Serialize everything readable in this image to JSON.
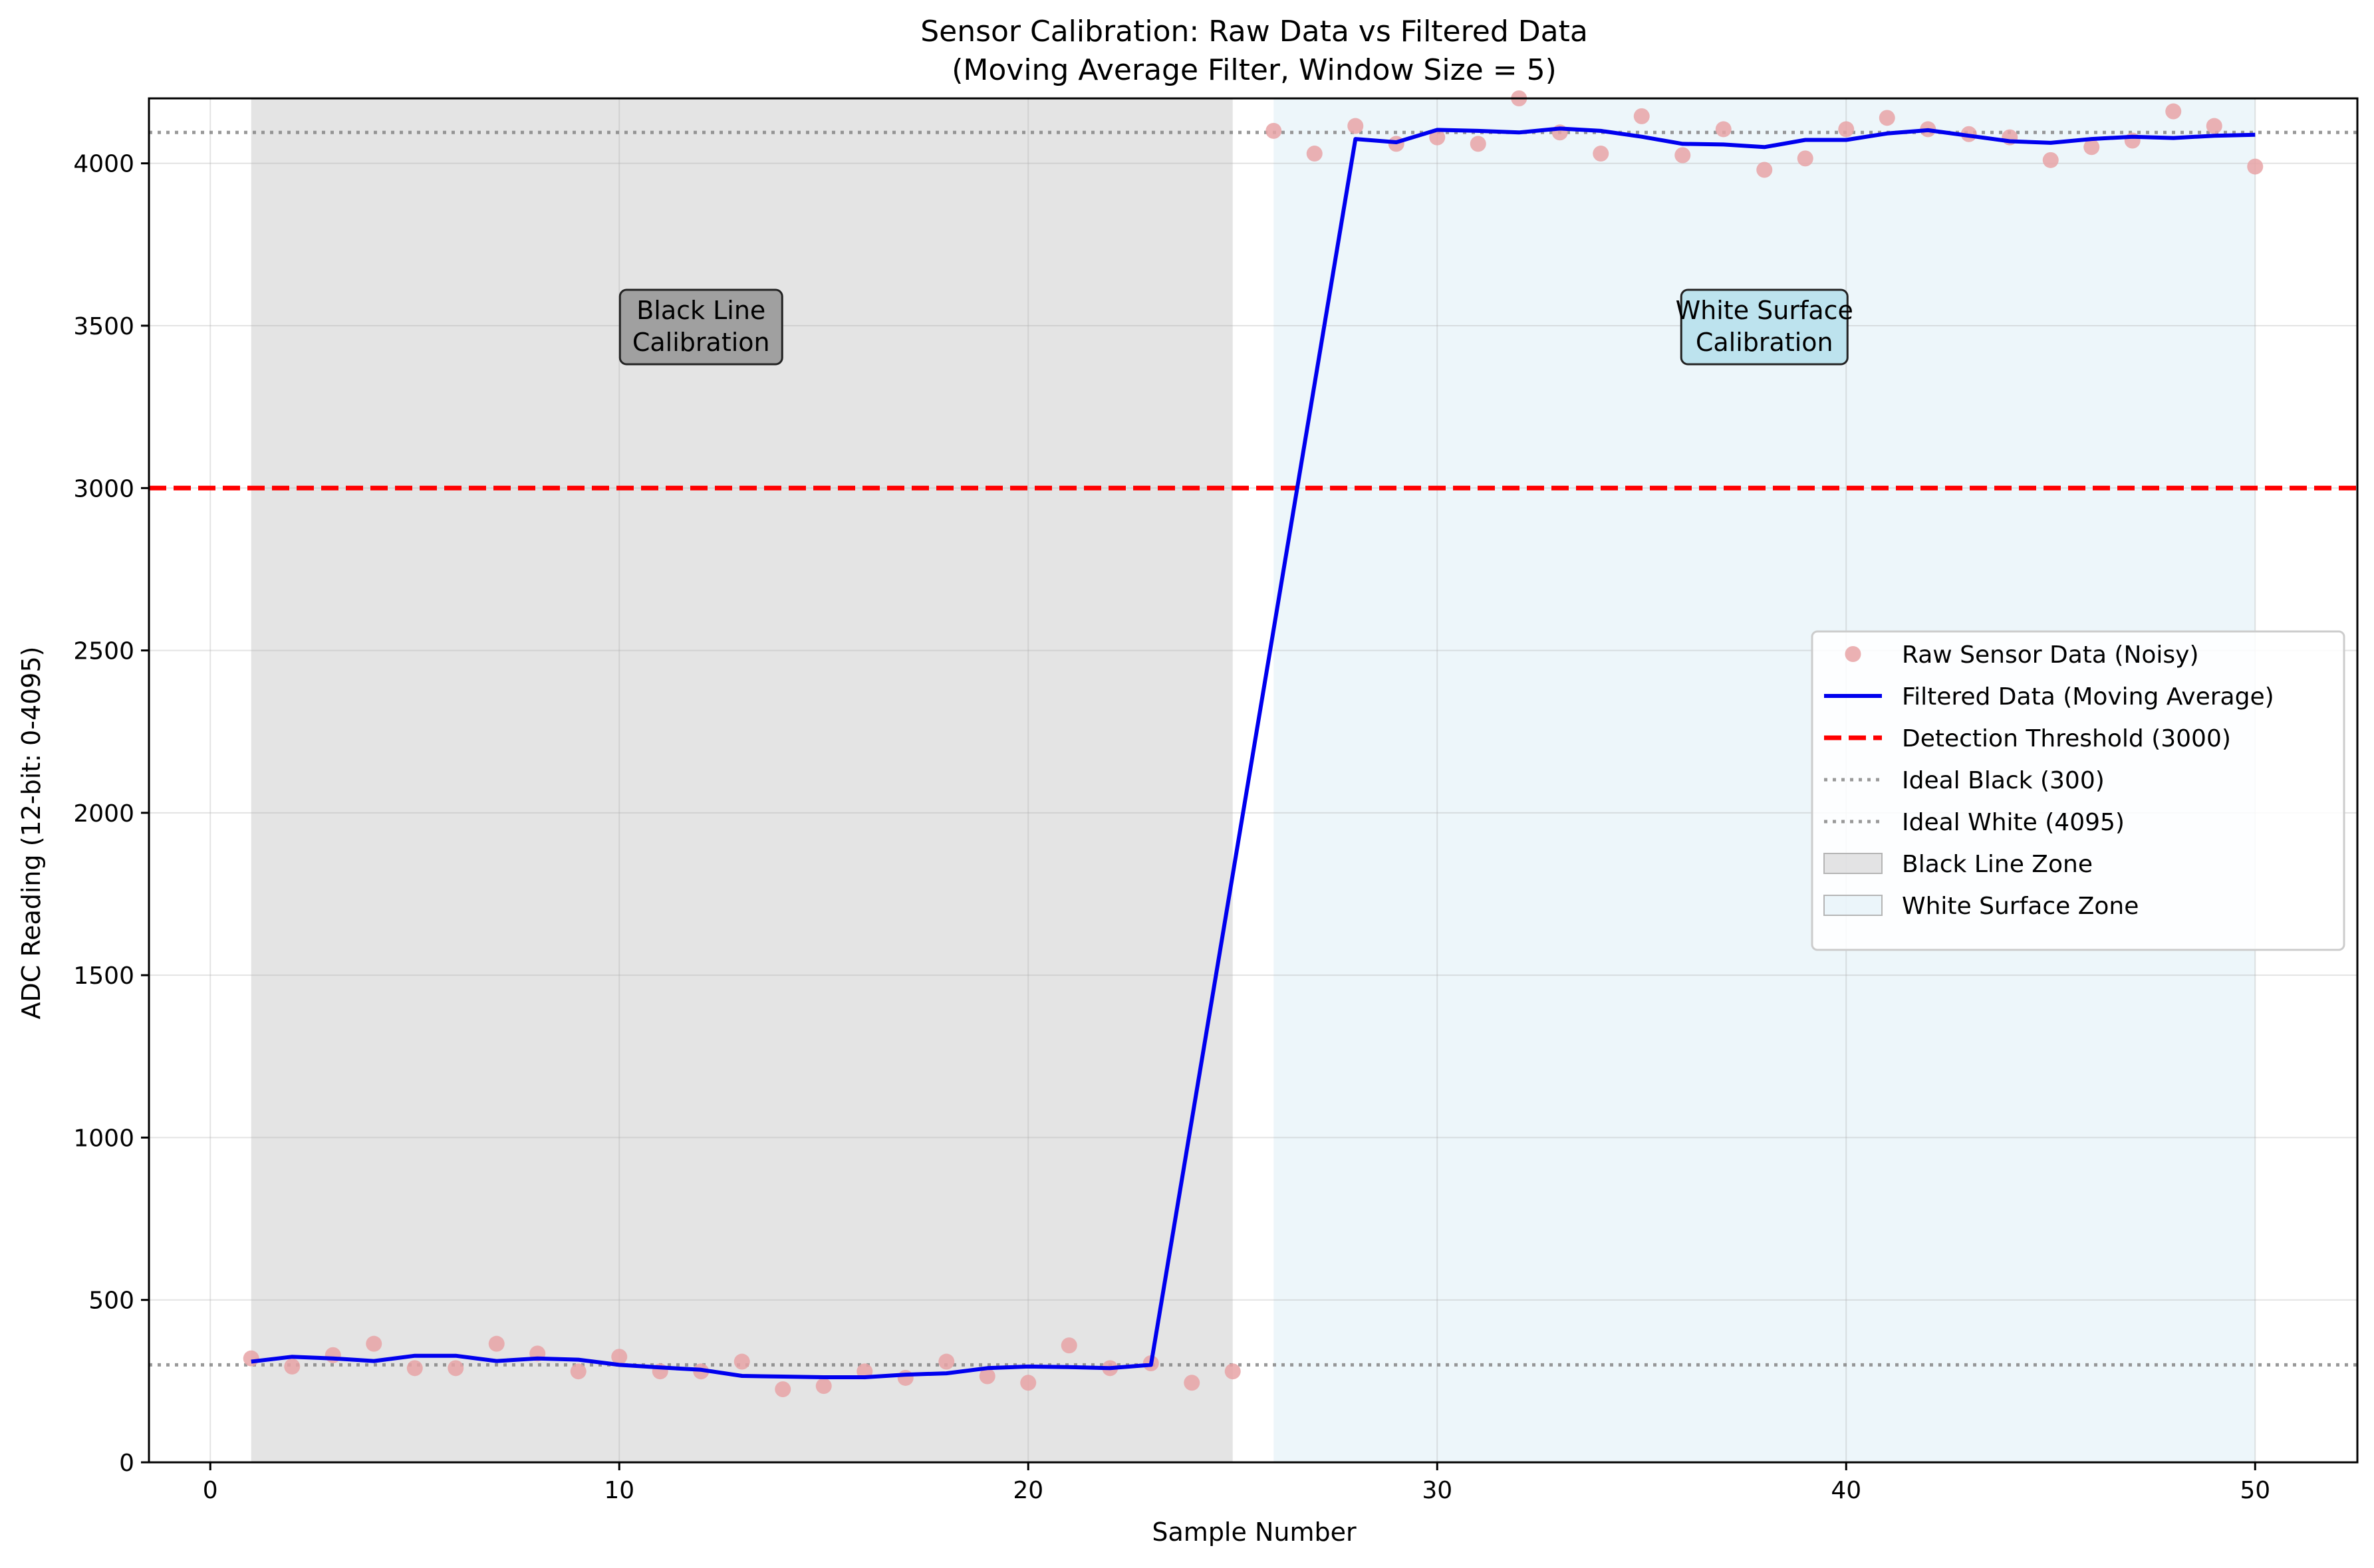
{
  "chart_data": {
    "type": "line",
    "title": "Sensor Calibration: Raw Data vs Filtered Data",
    "subtitle": "(Moving Average Filter, Window Size = 5)",
    "xlabel": "Sample Number",
    "ylabel": "ADC Reading (12-bit: 0-4095)",
    "xlim": [
      -1.5,
      52.5
    ],
    "ylim": [
      0,
      4200
    ],
    "xticks": [
      0,
      10,
      20,
      30,
      40,
      50
    ],
    "yticks": [
      0,
      500,
      1000,
      1500,
      2000,
      2500,
      3000,
      3500,
      4000
    ],
    "grid": true,
    "legend_position": "center-right",
    "zones": [
      {
        "name": "Black Line Zone",
        "x_start": 1,
        "x_end": 25,
        "color": "#bebebe"
      },
      {
        "name": "White Surface Zone",
        "x_start": 26,
        "x_end": 50,
        "color": "#add8e6"
      }
    ],
    "reference_lines": [
      {
        "name": "Detection Threshold (3000)",
        "y": 3000,
        "color": "#ff0000",
        "style": "dashed"
      },
      {
        "name": "Ideal Black (300)",
        "y": 300,
        "color": "#808080",
        "style": "dotted"
      },
      {
        "name": "Ideal White (4095)",
        "y": 4095,
        "color": "#808080",
        "style": "dotted"
      }
    ],
    "annotations": [
      {
        "text": [
          "Black Line",
          "Calibration"
        ],
        "x": 12,
        "y": 3500,
        "bg": "#a0a0a0"
      },
      {
        "text": [
          "White Surface",
          "Calibration"
        ],
        "x": 38,
        "y": 3500,
        "bg": "#bde3ee"
      }
    ],
    "series": [
      {
        "name": "Raw Sensor Data (Noisy)",
        "kind": "scatter",
        "color": "#e8a3a6",
        "x": [
          1,
          2,
          3,
          4,
          5,
          6,
          7,
          8,
          9,
          10,
          11,
          12,
          13,
          14,
          15,
          16,
          17,
          18,
          19,
          20,
          21,
          22,
          23,
          24,
          25,
          26,
          27,
          28,
          29,
          30,
          31,
          32,
          33,
          34,
          35,
          36,
          37,
          38,
          39,
          40,
          41,
          42,
          43,
          44,
          45,
          46,
          47,
          48,
          49,
          50
        ],
        "y": [
          320,
          295,
          330,
          365,
          290,
          290,
          365,
          335,
          280,
          325,
          280,
          280,
          310,
          225,
          235,
          280,
          260,
          310,
          265,
          245,
          360,
          290,
          305,
          245,
          280,
          4100,
          4030,
          4115,
          4060,
          4080,
          4060,
          4200,
          4095,
          4030,
          4145,
          4025,
          4105,
          3980,
          4015,
          4105,
          4140,
          4105,
          4090,
          4080,
          4010,
          4050,
          4070,
          4160,
          4115,
          3990
        ]
      },
      {
        "name": "Filtered Data (Moving Average)",
        "kind": "line",
        "color": "#0000ee",
        "x": [
          1,
          2,
          3,
          4,
          5,
          6,
          7,
          8,
          9,
          10,
          11,
          12,
          13,
          14,
          15,
          16,
          17,
          18,
          19,
          20,
          21,
          22,
          23,
          28,
          29,
          30,
          31,
          32,
          33,
          34,
          35,
          36,
          37,
          38,
          39,
          40,
          41,
          42,
          43,
          44,
          45,
          46,
          47,
          48,
          49,
          50
        ],
        "y": [
          310,
          325,
          320,
          312,
          328,
          328,
          312,
          320,
          316,
          300,
          292,
          285,
          266,
          264,
          262,
          262,
          270,
          274,
          290,
          295,
          293,
          290,
          300,
          4075,
          4065,
          4103,
          4100,
          4095,
          4107,
          4100,
          4082,
          4060,
          4058,
          4050,
          4072,
          4072,
          4092,
          4102,
          4085,
          4068,
          4063,
          4075,
          4082,
          4078,
          4085,
          4088
        ]
      }
    ]
  }
}
